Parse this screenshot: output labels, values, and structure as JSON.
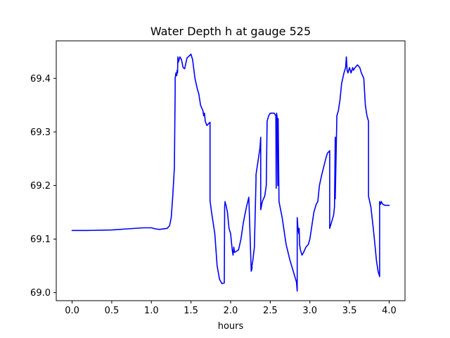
{
  "chart_data": {
    "type": "line",
    "title": "Water Depth h at gauge 525",
    "xlabel": "hours",
    "ylabel": "",
    "xlim": [
      -0.2,
      4.2
    ],
    "ylim": [
      68.985,
      69.47
    ],
    "grid": false,
    "x_ticks": [
      0.0,
      0.5,
      1.0,
      1.5,
      2.0,
      2.5,
      3.0,
      3.5,
      4.0
    ],
    "x_tick_labels": [
      "0.0",
      "0.5",
      "1.0",
      "1.5",
      "2.0",
      "2.5",
      "3.0",
      "3.5",
      "4.0"
    ],
    "y_ticks": [
      69.0,
      69.1,
      69.2,
      69.3,
      69.4
    ],
    "y_tick_labels": [
      "69.0",
      "69.1",
      "69.2",
      "69.3",
      "69.4"
    ],
    "series": [
      {
        "color": "#0000ff",
        "x": [
          0.0,
          0.2,
          0.5,
          0.7,
          0.9,
          1.0,
          1.05,
          1.1,
          1.2,
          1.23,
          1.25,
          1.27,
          1.29,
          1.3,
          1.3,
          1.31,
          1.32,
          1.325,
          1.33,
          1.335,
          1.34,
          1.36,
          1.38,
          1.4,
          1.42,
          1.45,
          1.5,
          1.52,
          1.55,
          1.58,
          1.6,
          1.62,
          1.65,
          1.66,
          1.67,
          1.68,
          1.7,
          1.72,
          1.74,
          1.74,
          1.76,
          1.8,
          1.83,
          1.86,
          1.89,
          1.92,
          1.925,
          1.93,
          1.935,
          1.94,
          1.96,
          1.98,
          2.0,
          2.01,
          2.02,
          2.03,
          2.04,
          2.05,
          2.07,
          2.1,
          2.13,
          2.16,
          2.2,
          2.23,
          2.26,
          2.27,
          2.27,
          2.28,
          2.3,
          2.32,
          2.32,
          2.33,
          2.35,
          2.37,
          2.38,
          2.38,
          2.4,
          2.43,
          2.45,
          2.46,
          2.46,
          2.48,
          2.5,
          2.52,
          2.55,
          2.57,
          2.575,
          2.58,
          2.585,
          2.59,
          2.595,
          2.6,
          2.61,
          2.65,
          2.7,
          2.75,
          2.8,
          2.83,
          2.84,
          2.84,
          2.85,
          2.86,
          2.865,
          2.87,
          2.88,
          2.9,
          2.92,
          2.95,
          2.98,
          3.0,
          3.05,
          3.08,
          3.1,
          3.12,
          3.15,
          3.2,
          3.22,
          3.25,
          3.25,
          3.27,
          3.3,
          3.31,
          3.32,
          3.32,
          3.34,
          3.36,
          3.37,
          3.38,
          3.4,
          3.43,
          3.45,
          3.46,
          3.47,
          3.48,
          3.5,
          3.51,
          3.52,
          3.54,
          3.55,
          3.57,
          3.6,
          3.63,
          3.65,
          3.68,
          3.7,
          3.72,
          3.74,
          3.74,
          3.77,
          3.8,
          3.82,
          3.84,
          3.86,
          3.87,
          3.88,
          3.88,
          3.89,
          3.9,
          3.92,
          3.95,
          4.0
        ],
        "y": [
          69.116,
          69.116,
          69.117,
          69.119,
          69.121,
          69.121,
          69.119,
          69.118,
          69.12,
          69.125,
          69.14,
          69.18,
          69.233,
          69.375,
          69.4,
          69.41,
          69.405,
          69.415,
          69.41,
          69.44,
          69.43,
          69.44,
          69.435,
          69.42,
          69.418,
          69.438,
          69.445,
          69.435,
          69.4,
          69.38,
          69.37,
          69.35,
          69.34,
          69.33,
          69.335,
          69.32,
          69.312,
          69.315,
          69.318,
          69.172,
          69.15,
          69.11,
          69.05,
          69.025,
          69.017,
          69.018,
          69.16,
          69.17,
          69.165,
          69.165,
          69.15,
          69.12,
          69.11,
          69.095,
          69.08,
          69.07,
          69.085,
          69.075,
          69.077,
          69.08,
          69.1,
          69.13,
          69.16,
          69.178,
          69.04,
          69.045,
          69.05,
          69.06,
          69.085,
          69.21,
          69.22,
          69.23,
          69.25,
          69.27,
          69.29,
          69.155,
          69.17,
          69.18,
          69.2,
          69.32,
          69.32,
          69.33,
          69.335,
          69.335,
          69.335,
          69.33,
          69.195,
          69.335,
          69.33,
          69.32,
          69.2,
          69.325,
          69.17,
          69.14,
          69.09,
          69.06,
          69.035,
          69.02,
          69.003,
          69.14,
          69.12,
          69.11,
          69.12,
          69.09,
          69.08,
          69.07,
          69.075,
          69.085,
          69.09,
          69.1,
          69.15,
          69.165,
          69.17,
          69.2,
          69.22,
          69.25,
          69.26,
          69.265,
          69.12,
          69.13,
          69.145,
          69.16,
          69.29,
          69.175,
          69.33,
          69.34,
          69.35,
          69.36,
          69.39,
          69.41,
          69.42,
          69.44,
          69.415,
          69.41,
          69.42,
          69.415,
          69.41,
          69.42,
          69.415,
          69.42,
          69.425,
          69.42,
          69.41,
          69.4,
          69.35,
          69.33,
          69.32,
          69.18,
          69.16,
          69.12,
          69.09,
          69.06,
          69.04,
          69.035,
          69.03,
          69.17,
          69.165,
          69.17,
          69.165,
          69.163,
          69.163
        ]
      }
    ]
  }
}
